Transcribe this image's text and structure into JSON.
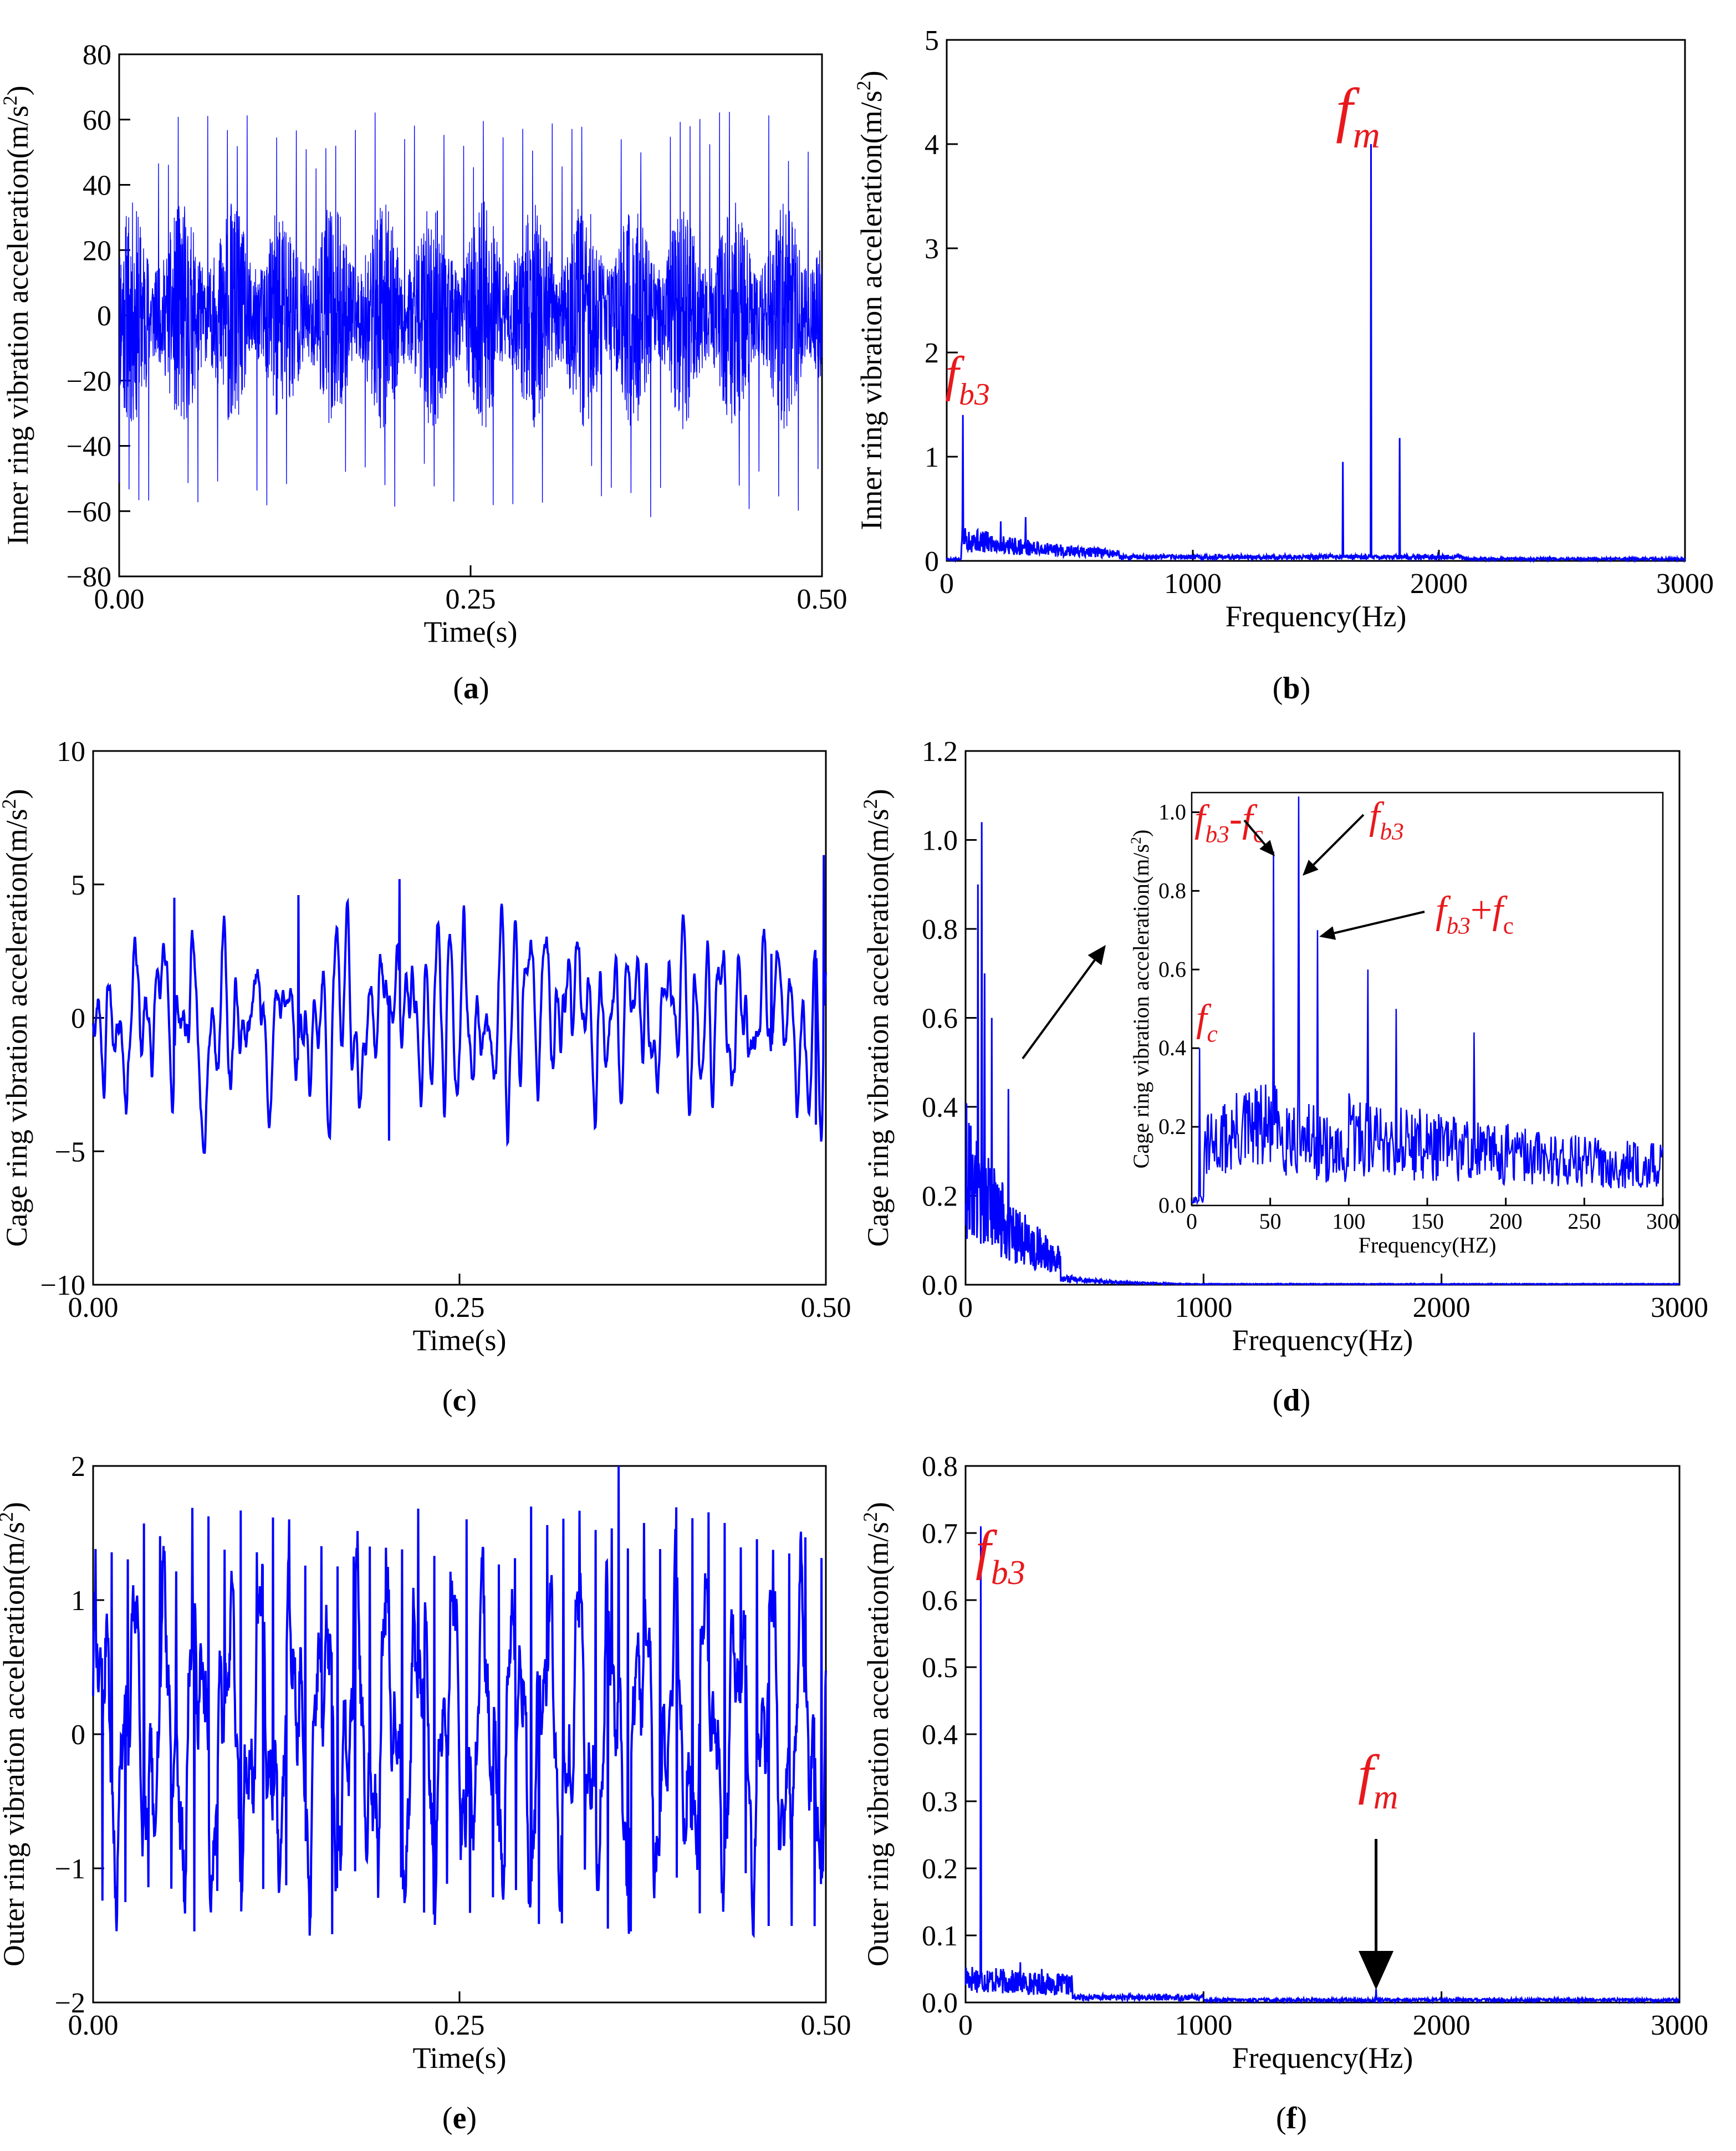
{
  "figure": {
    "panels": [
      {
        "id": "a",
        "caption": "a",
        "chart_data": {
          "type": "line",
          "xlabel": "Time(s)",
          "ylabel": "Inner ring vibration acceleration(m/s",
          "ylabel_sup": "2",
          "ylabel_tail": ")",
          "xlim": [
            0,
            0.5
          ],
          "ylim": [
            -80,
            80
          ],
          "xticks": [
            0,
            0.25,
            0.5
          ],
          "xtick_labels": [
            "0.00",
            "0.25",
            "0.50"
          ],
          "yticks": [
            -80,
            -60,
            -40,
            -20,
            0,
            20,
            40,
            60,
            80
          ],
          "ytick_labels": [
            "−80",
            "−60",
            "−40",
            "−20",
            "0",
            "20",
            "40",
            "60",
            "80"
          ],
          "series": [
            {
              "name": "inner ring acceleration",
              "signal": "dense oscillation",
              "amplitude_typical": 35,
              "peak_max": 65,
              "peak_min": -63
            }
          ],
          "annotations": []
        }
      },
      {
        "id": "b",
        "caption": "b",
        "chart_data": {
          "type": "line",
          "xlabel": "Frequency(Hz)",
          "ylabel": "Inner ring vibration acceleration(m/s",
          "ylabel_sup": "2",
          "ylabel_tail": ")",
          "xlim": [
            0,
            3000
          ],
          "ylim": [
            0,
            5
          ],
          "xticks": [
            0,
            1000,
            2000,
            3000
          ],
          "xtick_labels": [
            "0",
            "1000",
            "2000",
            "3000"
          ],
          "yticks": [
            0,
            1,
            2,
            3,
            4,
            5
          ],
          "ytick_labels": [
            "0",
            "1",
            "2",
            "3",
            "4",
            "5"
          ],
          "series": [
            {
              "name": "spectrum",
              "peaks": [
                [
                  65,
                  1.4
                ],
                [
                  1610,
                  0.95
                ],
                [
                  1725,
                  4.0
                ],
                [
                  1840,
                  1.18
                ],
                [
                  220,
                  0.38
                ],
                [
                  320,
                  0.42
                ]
              ],
              "noise_floor": 0.15
            }
          ],
          "annotations": [
            {
              "base": "f",
              "sub": "m",
              "x": 1725,
              "y": 4.2
            },
            {
              "base": "f",
              "sub": "b3",
              "x": 65,
              "y": 1.6
            }
          ]
        }
      },
      {
        "id": "c",
        "caption": "c",
        "chart_data": {
          "type": "line",
          "xlabel": "Time(s)",
          "ylabel": "Cage ring vibration acceleration(m/s",
          "ylabel_sup": "2",
          "ylabel_tail": ")",
          "xlim": [
            0,
            0.5
          ],
          "ylim": [
            -10,
            10
          ],
          "xticks": [
            0,
            0.25,
            0.5
          ],
          "xtick_labels": [
            "0.00",
            "0.25",
            "0.50"
          ],
          "yticks": [
            -10,
            -5,
            0,
            5,
            10
          ],
          "ytick_labels": [
            "−10",
            "−5",
            "0",
            "5",
            "10"
          ],
          "series": [
            {
              "name": "cage acceleration",
              "signal": "low-frequency irregular",
              "amplitude_typical": 1.5,
              "peak_max": 6.1,
              "peak_min": -4.7
            }
          ],
          "annotations": []
        }
      },
      {
        "id": "d",
        "caption": "d",
        "chart_data": {
          "type": "line",
          "xlabel": "Frequency(Hz)",
          "ylabel": "Cage ring vibration acceleration(m/s",
          "ylabel_sup": "2",
          "ylabel_tail": ")",
          "xlim": [
            0,
            3000
          ],
          "ylim": [
            0,
            1.2
          ],
          "xticks": [
            0,
            1000,
            2000,
            3000
          ],
          "xtick_labels": [
            "0",
            "1000",
            "2000",
            "3000"
          ],
          "yticks": [
            0,
            0.2,
            0.4,
            0.6,
            0.8,
            1.0,
            1.2
          ],
          "ytick_labels": [
            "0.0",
            "0.2",
            "0.4",
            "0.6",
            "0.8",
            "1.0",
            "1.2"
          ],
          "series": [
            {
              "name": "spectrum",
              "peaks": [
                [
                  52,
                  0.9
                ],
                [
                  68,
                  1.04
                ],
                [
                  80,
                  0.7
                ],
                [
                  110,
                  0.6
                ],
                [
                  180,
                  0.44
                ]
              ],
              "decay_to": 1000
            }
          ],
          "inset": {
            "xlabel": "Frequency(HZ)",
            "ylabel": "Cage ring vibration acceleration(m/s",
            "ylabel_sup": "2",
            "ylabel_tail": ")",
            "xlim": [
              0,
              300
            ],
            "ylim": [
              0,
              1.05
            ],
            "xticks": [
              0,
              50,
              100,
              150,
              200,
              250,
              300
            ],
            "xtick_labels": [
              "0",
              "50",
              "100",
              "150",
              "200",
              "250",
              "300"
            ],
            "yticks": [
              0,
              0.2,
              0.4,
              0.6,
              0.8,
              1.0
            ],
            "ytick_labels": [
              "0.0",
              "0.2",
              "0.4",
              "0.6",
              "0.8",
              "1.0"
            ],
            "peaks": [
              [
                5,
                0.4
              ],
              [
                52,
                0.9
              ],
              [
                68,
                1.04
              ],
              [
                80,
                0.7
              ],
              [
                112,
                0.6
              ],
              [
                130,
                0.5
              ],
              [
                180,
                0.44
              ]
            ]
          },
          "annotations": [
            {
              "label": "fb3-fc",
              "base": "f",
              "sub": "b3",
              "op": "-",
              "base2": "f",
              "sub2": "c",
              "x": 52,
              "y": 0.9
            },
            {
              "label": "fb3",
              "base": "f",
              "sub": "b3",
              "x": 68,
              "y": 1.04
            },
            {
              "label": "fb3+fc",
              "base": "f",
              "sub": "b3",
              "op": "+",
              "base2": "f",
              "sub2": "c",
              "x": 80,
              "y": 0.7
            },
            {
              "label": "fc",
              "base": "f",
              "sub": "c",
              "x": 5,
              "y": 0.4
            }
          ]
        }
      },
      {
        "id": "e",
        "caption": "e",
        "chart_data": {
          "type": "line",
          "xlabel": "Time(s)",
          "ylabel": "Outer ring vibration acceleration(m/s",
          "ylabel_sup": "2",
          "ylabel_tail": ")",
          "xlim": [
            0,
            0.5
          ],
          "ylim": [
            -2,
            2
          ],
          "xticks": [
            0,
            0.25,
            0.5
          ],
          "xtick_labels": [
            "0.00",
            "0.25",
            "0.50"
          ],
          "yticks": [
            -2,
            -1,
            0,
            1,
            2
          ],
          "ytick_labels": [
            "−2",
            "−1",
            "0",
            "1",
            "2"
          ],
          "series": [
            {
              "name": "outer ring acceleration",
              "signal": "periodic oscillation",
              "amplitude_typical": 1.1,
              "peak_max": 2.0,
              "peak_min": -1.5
            }
          ],
          "annotations": []
        }
      },
      {
        "id": "f",
        "caption": "f",
        "chart_data": {
          "type": "line",
          "xlabel": "Frequency(Hz)",
          "ylabel": "Outer ring vibration acceleration(m/s",
          "ylabel_sup": "2",
          "ylabel_tail": ")",
          "xlim": [
            0,
            3000
          ],
          "ylim": [
            0,
            0.8
          ],
          "xticks": [
            0,
            1000,
            2000,
            3000
          ],
          "xtick_labels": [
            "0",
            "1000",
            "2000",
            "3000"
          ],
          "yticks": [
            0,
            0.1,
            0.2,
            0.3,
            0.4,
            0.5,
            0.6,
            0.7,
            0.8
          ],
          "ytick_labels": [
            "0.0",
            "0.1",
            "0.2",
            "0.3",
            "0.4",
            "0.5",
            "0.6",
            "0.7",
            "0.8"
          ],
          "series": [
            {
              "name": "spectrum",
              "peaks": [
                [
                  65,
                  0.71
                ],
                [
                  230,
                  0.06
                ],
                [
                  320,
                  0.05
                ],
                [
                  1725,
                  0.02
                ]
              ],
              "noise_floor": 0.03
            }
          ],
          "annotations": [
            {
              "base": "f",
              "sub": "b3",
              "x": 65,
              "y": 0.71
            },
            {
              "base": "f",
              "sub": "m",
              "x": 1725,
              "y": 0.02
            }
          ]
        }
      }
    ]
  },
  "colors": {
    "series": "#0000ff",
    "annotation": "#e8191c",
    "axis": "#000000"
  }
}
